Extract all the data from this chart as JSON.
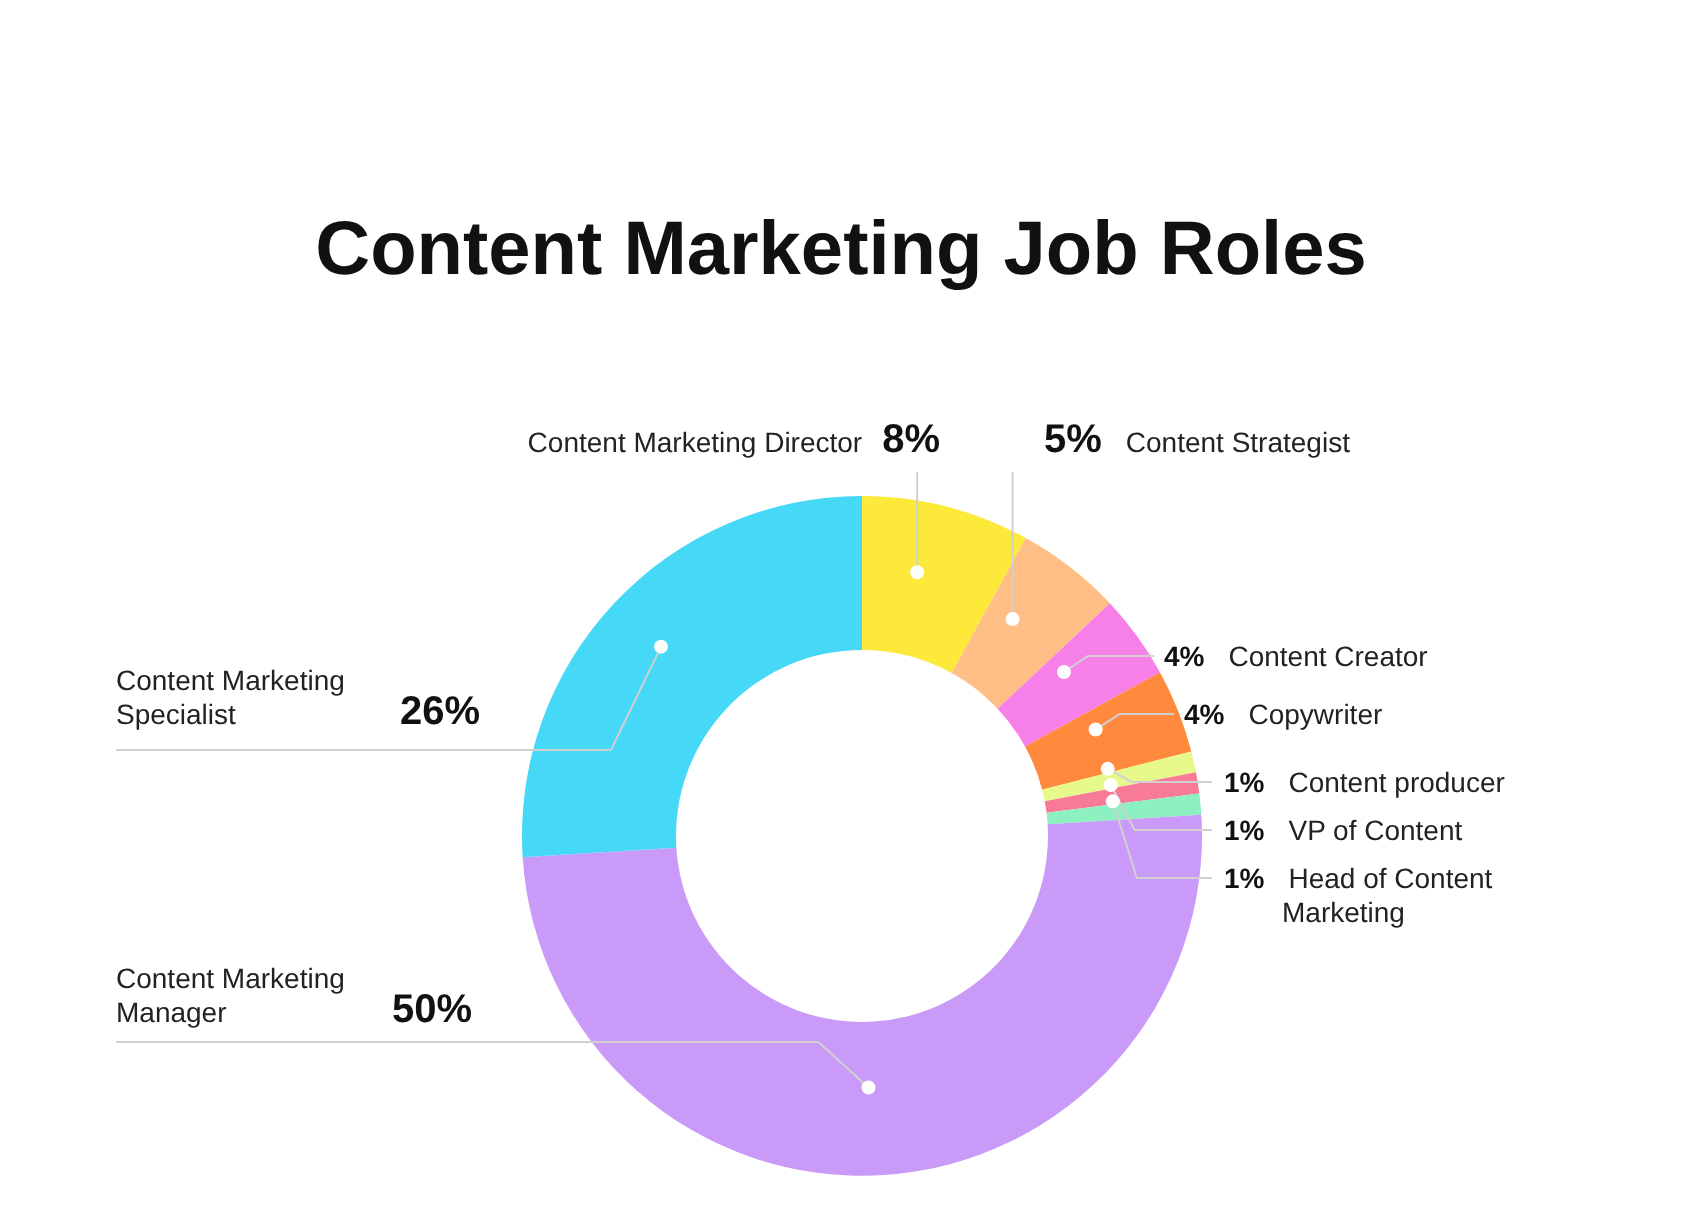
{
  "chart_data": {
    "type": "donut",
    "title": "Content Marketing Job Roles",
    "categories": [
      "Content Marketing Director",
      "Content Strategist",
      "Content Creator",
      "Copywriter",
      "Content producer",
      "VP of Content",
      "Head of Content Marketing",
      "Content Marketing Manager",
      "Content Marketing Specialist"
    ],
    "values": [
      8,
      5,
      4,
      4,
      1,
      1,
      1,
      50,
      26
    ],
    "value_labels": [
      "8%",
      "5%",
      "4%",
      "4%",
      "1%",
      "1%",
      "1%",
      "50%",
      "26%"
    ],
    "colors": [
      "#fde93a",
      "#ffbe86",
      "#f77fe8",
      "#ff8a3d",
      "#e6f98a",
      "#f77b97",
      "#8cf0c0",
      "#c99af7",
      "#45d8f7"
    ]
  }
}
